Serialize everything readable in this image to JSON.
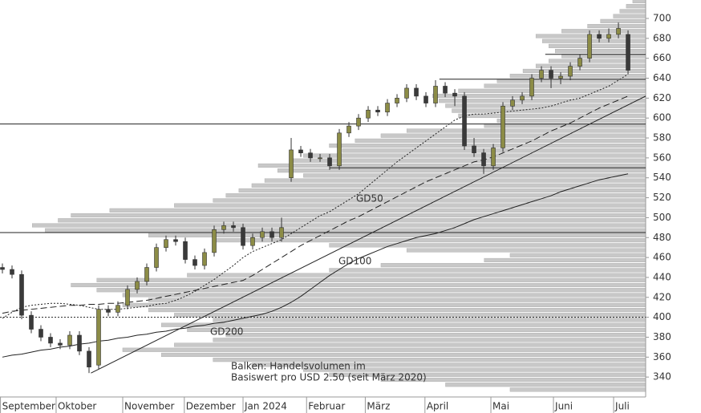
{
  "chart_data": {
    "type": "candlestick",
    "open": [
      450,
      448,
      443,
      402,
      388,
      380,
      374,
      372,
      382,
      366,
      352,
      408,
      405,
      412,
      428,
      436,
      450,
      470,
      478,
      476,
      458,
      452,
      465,
      488,
      492,
      490,
      472,
      480,
      486,
      480,
      540,
      568,
      565,
      560,
      560,
      552,
      585,
      592,
      600,
      608,
      606,
      615,
      620,
      630,
      622,
      615,
      632,
      625,
      622,
      572,
      565,
      552,
      570,
      612,
      618,
      622,
      640,
      648,
      640,
      642,
      652,
      660,
      684,
      680,
      684,
      684
    ],
    "high": [
      454,
      452,
      447,
      406,
      392,
      384,
      378,
      386,
      386,
      370,
      412,
      412,
      416,
      432,
      440,
      454,
      474,
      482,
      482,
      480,
      462,
      469,
      492,
      496,
      496,
      494,
      484,
      490,
      490,
      500,
      580,
      572,
      569,
      564,
      564,
      589,
      596,
      604,
      612,
      612,
      619,
      624,
      634,
      634,
      626,
      638,
      636,
      629,
      626,
      580,
      569,
      574,
      616,
      622,
      626,
      644,
      652,
      652,
      646,
      656,
      664,
      688,
      688,
      690,
      696,
      688
    ],
    "low": [
      444,
      439,
      398,
      384,
      376,
      370,
      368,
      368,
      362,
      344,
      348,
      401,
      401,
      408,
      424,
      432,
      446,
      466,
      472,
      454,
      448,
      448,
      461,
      484,
      486,
      468,
      468,
      476,
      476,
      476,
      536,
      561,
      556,
      556,
      548,
      548,
      581,
      588,
      596,
      602,
      602,
      611,
      616,
      618,
      611,
      611,
      621,
      612,
      568,
      561,
      544,
      548,
      566,
      608,
      614,
      618,
      636,
      630,
      634,
      638,
      648,
      656,
      676,
      676,
      680,
      644
    ],
    "close": [
      448,
      443,
      402,
      388,
      380,
      374,
      372,
      382,
      366,
      350,
      408,
      405,
      412,
      428,
      436,
      450,
      470,
      478,
      476,
      458,
      452,
      465,
      488,
      492,
      490,
      472,
      480,
      486,
      480,
      490,
      568,
      565,
      560,
      560,
      552,
      585,
      592,
      600,
      608,
      606,
      615,
      620,
      630,
      622,
      615,
      632,
      625,
      622,
      572,
      565,
      552,
      570,
      612,
      618,
      622,
      640,
      648,
      640,
      642,
      652,
      660,
      684,
      680,
      684,
      690,
      648
    ],
    "up_color": "#8c8c46",
    "down_color": "#3a3a3a",
    "series": [
      {
        "name": "GD50",
        "style": "dotted",
        "color": "#222",
        "values": [
          399,
          405,
          410,
          412,
          413,
          414,
          414,
          413,
          412,
          410,
          408,
          408,
          408,
          409,
          410,
          411,
          413,
          414,
          417,
          421,
          426,
          432,
          438,
          445,
          452,
          460,
          466,
          470,
          474,
          478,
          484,
          490,
          496,
          502,
          506,
          512,
          518,
          524,
          532,
          540,
          548,
          556,
          563,
          570,
          577,
          584,
          591,
          598,
          602,
          604,
          604,
          605,
          606,
          607,
          608,
          609,
          610,
          612,
          615,
          618,
          620,
          624,
          628,
          632,
          638,
          644
        ]
      },
      {
        "name": "GD100",
        "style": "dashed",
        "color": "#222",
        "values": [
          404,
          406,
          407,
          408,
          409,
          410,
          411,
          412,
          412,
          413,
          413,
          414,
          414,
          415,
          416,
          417,
          419,
          421,
          423,
          425,
          427,
          429,
          431,
          433,
          435,
          437,
          442,
          448,
          454,
          460,
          466,
          472,
          477,
          482,
          487,
          492,
          497,
          501,
          506,
          511,
          516,
          521,
          526,
          531,
          536,
          540,
          544,
          548,
          552,
          556,
          558,
          561,
          565,
          569,
          573,
          577,
          582,
          587,
          591,
          595,
          600,
          605,
          610,
          614,
          618,
          622
        ]
      },
      {
        "name": "GD200",
        "style": "solid",
        "color": "#222",
        "values": [
          360,
          362,
          363,
          365,
          367,
          368,
          370,
          371,
          373,
          374,
          376,
          377,
          379,
          380,
          382,
          383,
          385,
          386,
          388,
          389,
          391,
          392,
          394,
          395,
          397,
          399,
          401,
          403,
          406,
          410,
          415,
          421,
          428,
          435,
          442,
          448,
          454,
          459,
          463,
          467,
          471,
          474,
          477,
          480,
          482,
          484,
          487,
          490,
          494,
          498,
          501,
          504,
          507,
          510,
          513,
          516,
          519,
          522,
          526,
          529,
          532,
          535,
          538,
          540,
          542,
          544
        ]
      }
    ],
    "levels": [
      {
        "value": 594,
        "from": -0.25,
        "style": "solid"
      },
      {
        "value": 485,
        "from": -0.25,
        "style": "solid"
      },
      {
        "value": 400,
        "from": -0.25,
        "style": "dotted"
      },
      {
        "value": 550,
        "from": 34,
        "style": "solid"
      },
      {
        "value": 639,
        "from": 45.4,
        "style": "solid"
      },
      {
        "value": 664,
        "from": 56.4,
        "style": "solid"
      }
    ],
    "trendlines": [
      {
        "x": [
          9.2,
          66.83
        ],
        "y": [
          344,
          622
        ]
      }
    ],
    "volume_profile": {
      "levels": [
        325,
        330,
        335,
        340,
        345,
        350,
        355,
        360,
        365,
        370,
        375,
        380,
        385,
        390,
        395,
        400,
        405,
        410,
        415,
        420,
        425,
        430,
        435,
        440,
        445,
        450,
        455,
        460,
        465,
        470,
        475,
        480,
        485,
        490,
        495,
        500,
        505,
        510,
        515,
        520,
        525,
        530,
        535,
        540,
        545,
        550,
        555,
        560,
        565,
        570,
        575,
        580,
        585,
        590,
        595,
        600,
        605,
        610,
        615,
        620,
        625,
        630,
        635,
        640,
        645,
        650,
        655,
        660,
        665,
        670,
        675,
        680,
        685,
        690,
        695,
        700,
        705,
        710,
        715
      ],
      "values": [
        105,
        155,
        205,
        245,
        265,
        305,
        335,
        375,
        405,
        365,
        335,
        325,
        355,
        375,
        335,
        365,
        385,
        405,
        385,
        405,
        425,
        445,
        425,
        355,
        245,
        205,
        125,
        105,
        185,
        245,
        335,
        385,
        465,
        475,
        455,
        445,
        415,
        365,
        335,
        325,
        315,
        305,
        295,
        265,
        285,
        300,
        275,
        265,
        235,
        245,
        225,
        205,
        185,
        125,
        115,
        145,
        150,
        155,
        160,
        165,
        145,
        125,
        115,
        105,
        95,
        85,
        75,
        65,
        70,
        75,
        80,
        85,
        65,
        45,
        35,
        25,
        20,
        15,
        10
      ],
      "xlim": [
        0,
        500
      ],
      "color": "#c8c8c8"
    },
    "annotations": [
      "GD50",
      "GD100",
      "GD200"
    ],
    "note": [
      "Balken: Handelsvolumen im",
      "Basiswert pro USD 2.50 (seit März 2020)"
    ],
    "xlim": [
      -0.25,
      66.83
    ],
    "xticks": [
      {
        "value": -0.2,
        "label": "September"
      },
      {
        "value": 5.58,
        "label": "Oktober"
      },
      {
        "value": 12.5,
        "label": "November"
      },
      {
        "value": 18.9,
        "label": "Dezember"
      },
      {
        "value": 25,
        "label": "Jan 2024"
      },
      {
        "value": 31.6,
        "label": "Februar"
      },
      {
        "value": 37.7,
        "label": "März"
      },
      {
        "value": 43.9,
        "label": "April"
      },
      {
        "value": 50.75,
        "label": "Mai"
      },
      {
        "value": 57.25,
        "label": "Juni"
      },
      {
        "value": 63.5,
        "label": "Juli"
      }
    ],
    "ylim": [
      320,
      718.5
    ],
    "yticks": [
      340,
      360,
      380,
      400,
      420,
      440,
      460,
      480,
      500,
      520,
      540,
      560,
      580,
      600,
      620,
      640,
      660,
      680,
      700
    ]
  }
}
